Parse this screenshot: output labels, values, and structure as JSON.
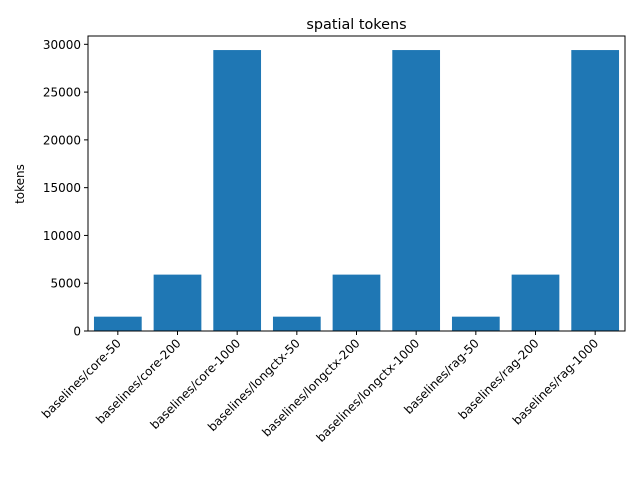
{
  "chart_data": {
    "type": "bar",
    "title": "spatial tokens",
    "xlabel": "",
    "ylabel": "tokens",
    "categories": [
      "baselines/core-50",
      "baselines/core-200",
      "baselines/core-1000",
      "baselines/longctx-50",
      "baselines/longctx-200",
      "baselines/longctx-1000",
      "baselines/rag-50",
      "baselines/rag-200",
      "baselines/rag-1000"
    ],
    "values": [
      1500,
      5900,
      29400,
      1500,
      5900,
      29400,
      1500,
      5900,
      29400
    ],
    "ylim": [
      0,
      30870
    ],
    "yticks": [
      0,
      5000,
      10000,
      15000,
      20000,
      25000,
      30000
    ],
    "grid": false,
    "legend": "none",
    "bar_color": "#1f77b4"
  }
}
